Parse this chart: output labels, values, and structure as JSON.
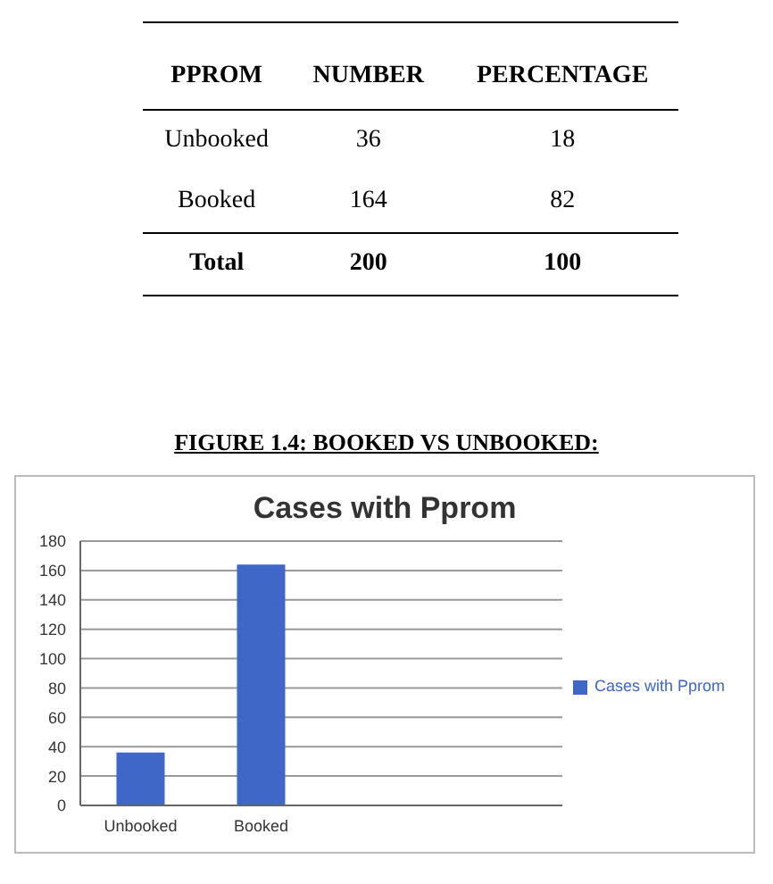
{
  "chart_data": [
    {
      "type": "other",
      "legend_title": "PPROM",
      "categories": [
        "Unbooked",
        "Booked",
        "Total"
      ],
      "series": [
        {
          "name": "NUMBER",
          "values": [
            36,
            164,
            200
          ]
        },
        {
          "name": "PERCENTAGE",
          "values": [
            18,
            82,
            100
          ]
        }
      ],
      "data_labels": true
    },
    {
      "type": "bar",
      "title": "Cases with Pprom",
      "annotations": [
        "FIGURE 1.4: BOOKED VS UNBOOKED:"
      ],
      "categories": [
        "Unbooked",
        "Booked",
        null,
        null
      ],
      "series": [
        {
          "name": "Cases with Pprom",
          "color": "#3f67c8",
          "values": [
            36,
            164,
            null,
            null
          ]
        }
      ],
      "ylim": [
        0,
        180
      ],
      "yticks": [
        0,
        20,
        40,
        60,
        80,
        100,
        120,
        140,
        160,
        180
      ],
      "grid": "y",
      "legend": "right"
    }
  ]
}
